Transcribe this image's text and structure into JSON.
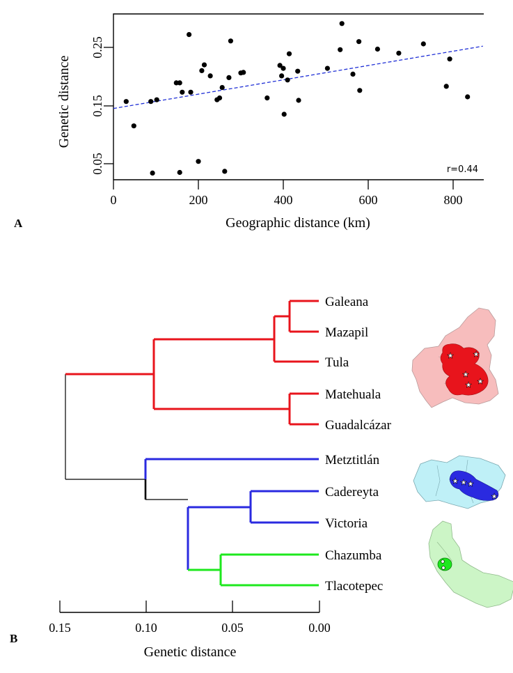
{
  "panel_a": {
    "label": "A",
    "r_text": "r=0.44"
  },
  "panel_b": {
    "label": "B"
  },
  "chart_data": [
    {
      "type": "scatter",
      "title": "",
      "xlabel": "Geographic distance (km)",
      "ylabel": "Genetic distance",
      "xlim": [
        0,
        870
      ],
      "ylim": [
        0.03,
        0.296
      ],
      "xticks": [
        0,
        200,
        400,
        600,
        800
      ],
      "yticks": [
        0.05,
        0.15,
        0.25
      ],
      "ytick_labels": [
        "0.05",
        "0.15",
        "0.25"
      ],
      "points": [
        [
          30,
          0.157
        ],
        [
          48,
          0.115
        ],
        [
          88,
          0.157
        ],
        [
          92,
          0.034
        ],
        [
          102,
          0.16
        ],
        [
          148,
          0.189
        ],
        [
          156,
          0.189
        ],
        [
          156,
          0.035
        ],
        [
          162,
          0.173
        ],
        [
          178,
          0.272
        ],
        [
          182,
          0.173
        ],
        [
          200,
          0.054
        ],
        [
          208,
          0.21
        ],
        [
          214,
          0.22
        ],
        [
          228,
          0.201
        ],
        [
          244,
          0.16
        ],
        [
          250,
          0.163
        ],
        [
          256,
          0.181
        ],
        [
          262,
          0.037
        ],
        [
          272,
          0.198
        ],
        [
          276,
          0.261
        ],
        [
          300,
          0.206
        ],
        [
          306,
          0.207
        ],
        [
          362,
          0.163
        ],
        [
          392,
          0.219
        ],
        [
          396,
          0.201
        ],
        [
          400,
          0.214
        ],
        [
          402,
          0.135
        ],
        [
          410,
          0.194
        ],
        [
          414,
          0.239
        ],
        [
          434,
          0.209
        ],
        [
          436,
          0.159
        ],
        [
          504,
          0.214
        ],
        [
          534,
          0.246
        ],
        [
          538,
          0.291
        ],
        [
          564,
          0.204
        ],
        [
          578,
          0.26
        ],
        [
          580,
          0.176
        ],
        [
          622,
          0.247
        ],
        [
          672,
          0.24
        ],
        [
          730,
          0.256
        ],
        [
          784,
          0.183
        ],
        [
          792,
          0.23
        ],
        [
          834,
          0.165
        ]
      ],
      "trendline": {
        "color": "#1f2fd6",
        "style": "dashed",
        "from": [
          0,
          0.145
        ],
        "to": [
          870,
          0.252
        ]
      },
      "annotation": "r=0.44"
    },
    {
      "type": "dendrogram",
      "xlabel": "Genetic distance",
      "xlim": [
        0.15,
        0.0
      ],
      "xticks": [
        0.15,
        0.1,
        0.05,
        0.0
      ],
      "xtick_labels": [
        "0.15",
        "0.10",
        "0.05",
        "0.00"
      ],
      "leaves": [
        "Galeana",
        "Mazapil",
        "Tula",
        "Matehuala",
        "Guadalcázar",
        "Metztitlán",
        "Cadereyta",
        "Victoria",
        "Chazumba",
        "Tlacotepec"
      ],
      "clusters": [
        {
          "name": "red",
          "color": "#e8141c",
          "leaves": [
            "Galeana",
            "Mazapil",
            "Tula",
            "Matehuala",
            "Guadalcázar"
          ]
        },
        {
          "name": "blue",
          "color": "#2a2ae0",
          "leaves": [
            "Metztitlán",
            "Cadereyta",
            "Victoria"
          ]
        },
        {
          "name": "green",
          "color": "#1ee81e",
          "leaves": [
            "Chazumba",
            "Tlacotepec"
          ]
        }
      ],
      "nodes": [
        {
          "id": "n_gm",
          "height": 0.018,
          "children": [
            "Galeana",
            "Mazapil"
          ],
          "color": "#e8141c"
        },
        {
          "id": "n_gmt",
          "height": 0.028,
          "children": [
            "n_gm",
            "Tula"
          ],
          "color": "#e8141c"
        },
        {
          "id": "n_mg",
          "height": 0.018,
          "children": [
            "Matehuala",
            "Guadalcázar"
          ],
          "color": "#e8141c"
        },
        {
          "id": "n_red",
          "height": 0.096,
          "children": [
            "n_gmt",
            "n_mg"
          ],
          "color": "#e8141c"
        },
        {
          "id": "n_cv",
          "height": 0.04,
          "children": [
            "Cadereyta",
            "Victoria"
          ],
          "color": "#2a2ae0"
        },
        {
          "id": "n_ct",
          "height": 0.058,
          "children": [
            "Chazumba",
            "Tlacotepec"
          ],
          "color": "#1ee81e"
        },
        {
          "id": "n_cvct",
          "height": 0.077,
          "children": [
            "n_cv",
            "n_ct"
          ],
          "color": "#2a2ae0"
        },
        {
          "id": "n_blue",
          "height": 0.101,
          "children": [
            "Metztitlán",
            "n_cvct"
          ],
          "color": "#2a2ae0"
        },
        {
          "id": "root",
          "height": 0.149,
          "children": [
            "n_red",
            "n_blue"
          ],
          "color": "#000000"
        }
      ]
    }
  ]
}
